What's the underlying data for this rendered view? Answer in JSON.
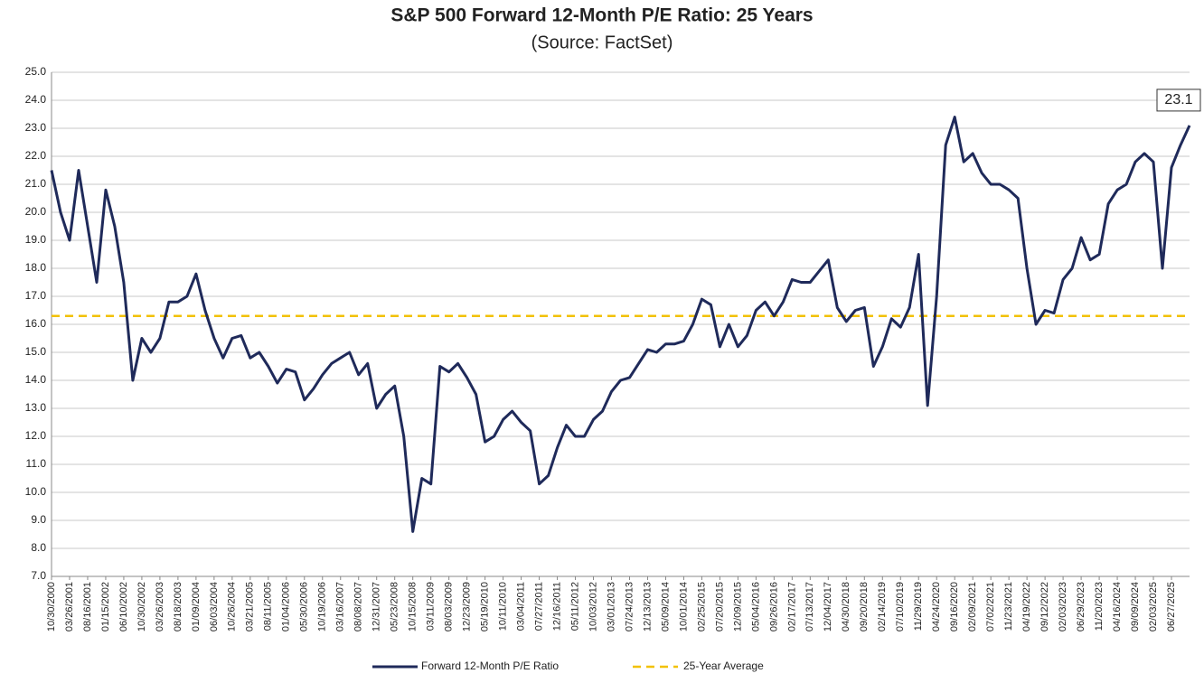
{
  "chart_data": {
    "type": "line",
    "title": "S&P 500 Forward 12-Month P/E Ratio: 25 Years",
    "subtitle": "(Source: FactSet)",
    "categories": [
      "10/30/2000",
      null,
      "03/26/2001",
      null,
      "08/16/2001",
      null,
      "01/15/2002",
      null,
      "06/10/2002",
      null,
      "10/30/2002",
      null,
      "03/26/2003",
      null,
      "08/18/2003",
      null,
      "01/09/2004",
      null,
      "06/03/2004",
      null,
      "10/26/2004",
      null,
      "03/21/2005",
      null,
      "08/11/2005",
      null,
      "01/04/2006",
      null,
      "05/30/2006",
      null,
      "10/19/2006",
      null,
      "03/16/2007",
      null,
      "08/08/2007",
      null,
      "12/31/2007",
      null,
      "05/23/2008",
      null,
      "10/15/2008",
      null,
      "03/11/2009",
      null,
      "08/03/2009",
      null,
      "12/23/2009",
      null,
      "05/19/2010",
      null,
      "10/11/2010",
      null,
      "03/04/2011",
      null,
      "07/27/2011",
      null,
      "12/16/2011",
      null,
      "05/11/2012",
      null,
      "10/03/2012",
      null,
      "03/01/2013",
      null,
      "07/24/2013",
      null,
      "12/13/2013",
      null,
      "05/09/2014",
      null,
      "10/01/2014",
      null,
      "02/25/2015",
      null,
      "07/20/2015",
      null,
      "12/09/2015",
      null,
      "05/04/2016",
      null,
      "09/26/2016",
      null,
      "02/17/2017",
      null,
      "07/13/2017",
      null,
      "12/04/2017",
      null,
      "04/30/2018",
      null,
      "09/20/2018",
      null,
      "02/14/2019",
      null,
      "07/10/2019",
      null,
      "11/29/2019",
      null,
      "04/24/2020",
      null,
      "09/16/2020",
      null,
      "02/09/2021",
      null,
      "07/02/2021",
      null,
      "11/23/2021",
      null,
      "04/19/2022",
      null,
      "09/12/2022",
      null,
      "02/03/2023",
      null,
      "06/29/2023",
      null,
      "11/20/2023",
      null,
      "04/16/2024",
      null,
      "09/09/2024",
      null,
      "02/03/2025",
      null,
      "06/27/2025",
      null,
      null
    ],
    "series": [
      {
        "name": "Forward 12-Month P/E Ratio",
        "color": "#1f2a5a",
        "values": [
          21.5,
          20.0,
          19.0,
          21.5,
          19.5,
          17.5,
          20.8,
          19.5,
          17.5,
          14.0,
          15.5,
          15.0,
          15.5,
          16.8,
          16.8,
          17.0,
          17.8,
          16.5,
          15.5,
          14.8,
          15.5,
          15.6,
          14.8,
          15.0,
          14.5,
          13.9,
          14.4,
          14.3,
          13.3,
          13.7,
          14.2,
          14.6,
          14.8,
          15.0,
          14.2,
          14.6,
          13.0,
          13.5,
          13.8,
          12.0,
          8.6,
          10.5,
          10.3,
          14.5,
          14.3,
          14.6,
          14.1,
          13.5,
          11.8,
          12.0,
          12.6,
          12.9,
          12.5,
          12.2,
          10.3,
          10.6,
          11.6,
          12.4,
          12.0,
          12.0,
          12.6,
          12.9,
          13.6,
          14.0,
          14.1,
          14.6,
          15.1,
          15.0,
          15.3,
          15.3,
          15.4,
          16.0,
          16.9,
          16.7,
          15.2,
          16.0,
          15.2,
          15.6,
          16.5,
          16.8,
          16.3,
          16.8,
          17.6,
          17.5,
          17.5,
          17.9,
          18.3,
          16.6,
          16.1,
          16.5,
          16.6,
          14.5,
          15.2,
          16.2,
          15.9,
          16.6,
          18.5,
          13.1,
          17.0,
          22.4,
          23.4,
          21.8,
          22.1,
          21.4,
          21.0,
          21.0,
          20.8,
          20.5,
          18.0,
          16.0,
          16.5,
          16.4,
          17.6,
          18.0,
          19.1,
          18.3,
          18.5,
          20.3,
          20.8,
          21.0,
          21.8,
          22.1,
          21.8,
          18.0,
          21.6,
          22.4,
          23.1
        ]
      }
    ],
    "average": {
      "name": "25-Year Average",
      "color": "#f2c100",
      "value": 16.3
    },
    "annotation": "23.1",
    "ylim": [
      7,
      25
    ],
    "yticks": [
      {
        "value": 7,
        "label": "7.0"
      },
      {
        "value": 8,
        "label": "8.0"
      },
      {
        "value": 9,
        "label": "9.0"
      },
      {
        "value": 10,
        "label": "10.0"
      },
      {
        "value": 11,
        "label": "11.0"
      },
      {
        "value": 12,
        "label": "12.0"
      },
      {
        "value": 13,
        "label": "13.0"
      },
      {
        "value": 14,
        "label": "14.0"
      },
      {
        "value": 15,
        "label": "15.0"
      },
      {
        "value": 16,
        "label": "16.0"
      },
      {
        "value": 17,
        "label": "17.0"
      },
      {
        "value": 18,
        "label": "18.0"
      },
      {
        "value": 19,
        "label": "19.0"
      },
      {
        "value": 20,
        "label": "20.0"
      },
      {
        "value": 21,
        "label": "21.0"
      },
      {
        "value": 22,
        "label": "22.0"
      },
      {
        "value": 23,
        "label": "23.0"
      },
      {
        "value": 24,
        "label": "24.0"
      },
      {
        "value": 25,
        "label": "25.0"
      }
    ],
    "grid": true,
    "legend": "bottom"
  }
}
